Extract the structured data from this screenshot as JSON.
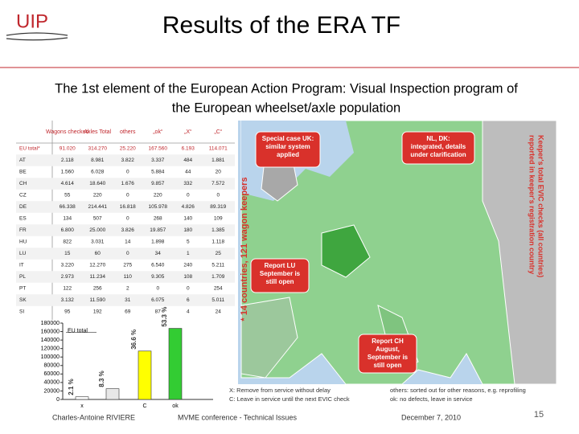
{
  "header": {
    "logo": "UIP",
    "title": "Results of the ERA TF"
  },
  "subtitle": [
    "The 1st element of the European Action Program: Visual Inspection program of",
    "the European wheelset/axle population"
  ],
  "table": {
    "columns": [
      "Wagons checked",
      "Axles Total",
      "others",
      "„ok“",
      "„X“",
      "„C“"
    ],
    "rows": [
      [
        "EU total*",
        "91.020",
        "314.270",
        "25.220",
        "167.560",
        "6.193",
        "114.071"
      ],
      [
        "AT",
        "2.118",
        "8.981",
        "3.822",
        "3.337",
        "484",
        "1.881"
      ],
      [
        "BE",
        "1.560",
        "6.028",
        "0",
        "5.884",
        "44",
        "20"
      ],
      [
        "CH",
        "4.614",
        "18.640",
        "1.676",
        "9.857",
        "332",
        "7.572"
      ],
      [
        "CZ",
        "55",
        "220",
        "0",
        "220",
        "0",
        "0"
      ],
      [
        "DE",
        "66.338",
        "214.441",
        "16.818",
        "105.978",
        "4.826",
        "89.319"
      ],
      [
        "ES",
        "134",
        "507",
        "0",
        "268",
        "140",
        "109"
      ],
      [
        "FR",
        "6.800",
        "25.000",
        "3.826",
        "19.857",
        "180",
        "1.385"
      ],
      [
        "HU",
        "822",
        "3.031",
        "14",
        "1.898",
        "5",
        "1.118"
      ],
      [
        "LU",
        "15",
        "60",
        "0",
        "34",
        "1",
        "25"
      ],
      [
        "IT",
        "3.220",
        "12.270",
        "275",
        "6.540",
        "240",
        "5.211"
      ],
      [
        "PL",
        "2.973",
        "11.234",
        "110",
        "9.305",
        "108",
        "1.709"
      ],
      [
        "PT",
        "122",
        "256",
        "2",
        "0",
        "0",
        "254"
      ],
      [
        "SK",
        "3.132",
        "11.590",
        "31",
        "6.075",
        "6",
        "5.011"
      ],
      [
        "SI",
        "95",
        "192",
        "69",
        "87",
        "4",
        "24"
      ]
    ]
  },
  "chart_data": {
    "type": "bar",
    "label": "EU total",
    "categories": [
      "x",
      null,
      "C",
      "ok"
    ],
    "values": [
      6193,
      25220,
      114071,
      167560
    ],
    "bar_annotations": [
      "2.1 %",
      "8.3 %",
      "36.6 %",
      "53.3 %"
    ],
    "colors": [
      "#ffffff",
      "#e8e8e8",
      "#ffff00",
      "#33cc33"
    ],
    "ylim": [
      0,
      180000
    ],
    "yticks": [
      0,
      20000,
      40000,
      60000,
      80000,
      100000,
      120000,
      140000,
      160000,
      180000
    ]
  },
  "map": {
    "callouts": [
      [
        "Special case UK:",
        "similar system",
        "applied"
      ],
      [
        "NL, DK:",
        "integrated, details",
        "under clarification"
      ],
      [
        "Report LU",
        "September is",
        "still open"
      ],
      [
        "Report CH",
        "August,",
        "September is",
        "still open"
      ]
    ],
    "side_note": "* 14 countries, 121 wagon keepers",
    "keeper_note": [
      "Keeper's total EVIC checks (all countries)",
      "reported in keeper's registration country"
    ]
  },
  "legend": [
    "X: Remove from service without delay",
    "others: sorted out for other reasons, e.g. reprofiling",
    "C: Leave in service until the next EVIC check",
    "ok: no defects, leave in service"
  ],
  "footer": {
    "author": "Charles-Antoine RIVIERE",
    "event": "MVME conference - Technical Issues",
    "date": "December 7, 2010",
    "page": "15"
  }
}
